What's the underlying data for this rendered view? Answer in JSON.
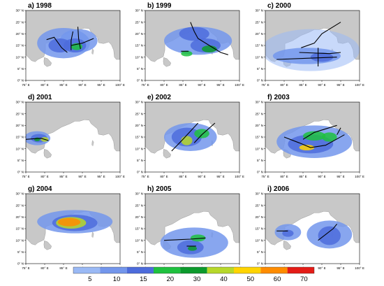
{
  "chart_data": {
    "type": "heatmap",
    "lon_ticks": [
      "75° E",
      "80° E",
      "85° E",
      "90° E",
      "95° E",
      "100° E"
    ],
    "lat_ticks": [
      "0° N",
      "5° N",
      "10° N",
      "15° N",
      "20° N",
      "25° N",
      "30° N"
    ],
    "xlim": [
      75,
      100
    ],
    "ylim": [
      0,
      30
    ],
    "colorbar": {
      "labels": [
        "5",
        "10",
        "15",
        "20",
        "30",
        "40",
        "50",
        "60",
        "70"
      ],
      "colors": [
        "#9ab9f5",
        "#7396ec",
        "#4d6cdc",
        "#1fc13f",
        "#0c9a2c",
        "#b7d82a",
        "#ffd400",
        "#ff8c00",
        "#e41c17"
      ]
    },
    "panels": [
      {
        "label": "a) 1998",
        "tracks": [
          [
            [
              80.5,
              17.5
            ],
            [
              82.5,
              18.5
            ],
            [
              84.5,
              14
            ],
            [
              86,
              12
            ]
          ],
          [
            [
              87.5,
              21
            ],
            [
              87,
              17
            ],
            [
              87,
              13
            ]
          ],
          [
            [
              88.8,
              23
            ],
            [
              89,
              18
            ],
            [
              89.5,
              13.5
            ]
          ],
          [
            [
              87,
              15
            ],
            [
              90,
              16
            ],
            [
              93,
              18
            ]
          ]
        ],
        "blobs": [
          [
            85,
            16,
            7,
            6.5,
            1
          ],
          [
            89,
            17,
            5,
            5,
            1
          ],
          [
            88,
            15,
            3,
            3,
            2
          ],
          [
            84,
            15,
            3,
            3,
            2
          ],
          [
            88.5,
            14.5,
            1.5,
            1.5,
            3
          ]
        ]
      },
      {
        "label": "b) 1999",
        "tracks": [
          [
            [
              87,
              25
            ],
            [
              88,
              21
            ],
            [
              89,
              18
            ],
            [
              92,
              15
            ],
            [
              95,
              12
            ],
            [
              97,
              11
            ]
          ],
          [
            [
              84.5,
              12.5
            ],
            [
              86.5,
              12.5
            ]
          ]
        ],
        "blobs": [
          [
            89,
            17,
            9,
            6,
            1
          ],
          [
            88,
            20,
            4,
            3,
            2
          ],
          [
            91,
            15,
            4,
            3,
            2
          ],
          [
            92,
            13.5,
            2,
            1.5,
            4
          ],
          [
            86,
            11.5,
            1.5,
            1.2,
            3
          ]
        ]
      },
      {
        "label": "c) 2000",
        "tracks": [
          [
            [
              78,
              9
            ],
            [
              86,
              9.5
            ],
            [
              94,
              10
            ]
          ],
          [
            [
              84,
              12
            ],
            [
              92,
              11.5
            ],
            [
              95,
              12
            ]
          ],
          [
            [
              84.5,
              14
            ],
            [
              88,
              16
            ],
            [
              90,
              20
            ],
            [
              95,
              25
            ]
          ],
          [
            [
              89,
              6
            ],
            [
              89,
              14
            ]
          ]
        ],
        "blobs": [
          [
            87,
            13,
            13,
            9,
            0
          ],
          [
            86,
            10.5,
            9,
            3.5,
            1
          ],
          [
            90,
            10,
            3,
            2,
            2
          ]
        ]
      },
      {
        "label": "d) 2001",
        "tracks": [
          [
            [
              75,
              14
            ],
            [
              79,
              14.5
            ],
            [
              81,
              13.5
            ]
          ]
        ],
        "blobs": [
          [
            78,
            14.5,
            3.5,
            3,
            1
          ],
          [
            78.5,
            14.5,
            2.2,
            1.8,
            2
          ],
          [
            80,
            14,
            1,
            1,
            5
          ],
          [
            78,
            14,
            0.8,
            0.8,
            4
          ]
        ]
      },
      {
        "label": "e) 2002",
        "tracks": [
          [
            [
              82,
              9
            ],
            [
              85,
              14
            ],
            [
              89,
              21
            ]
          ],
          [
            [
              88,
              12.5
            ],
            [
              90,
              16
            ],
            [
              93.5,
              21
            ]
          ]
        ],
        "blobs": [
          [
            87,
            15,
            7,
            6,
            1
          ],
          [
            86,
            15,
            4,
            4,
            2
          ],
          [
            86,
            13.5,
            1.5,
            2,
            5
          ],
          [
            90,
            16.5,
            2,
            2,
            3
          ]
        ]
      },
      {
        "label": "f) 2003",
        "tracks": [
          [
            [
              80,
              15
            ],
            [
              84,
              12.5
            ],
            [
              87,
              10.5
            ],
            [
              91,
              11.5
            ],
            [
              96,
              16
            ]
          ],
          [
            [
              85,
              14
            ],
            [
              88,
              17
            ],
            [
              94,
              20
            ]
          ],
          [
            [
              94,
              16
            ],
            [
              95,
              19
            ]
          ]
        ],
        "blobs": [
          [
            88,
            13,
            10,
            7,
            1
          ],
          [
            87,
            12,
            6,
            4,
            2
          ],
          [
            86,
            10.5,
            2,
            1.2,
            6
          ],
          [
            88,
            15.5,
            3,
            2,
            3
          ],
          [
            92,
            15,
            2,
            2,
            3
          ]
        ]
      },
      {
        "label": "g) 2004",
        "tracks": [],
        "blobs": [
          [
            88,
            18,
            10,
            5,
            1
          ],
          [
            88,
            17.5,
            6,
            3.5,
            2
          ],
          [
            87,
            17.5,
            4,
            2.5,
            5
          ],
          [
            86.5,
            17.8,
            3,
            1.8,
            7
          ]
        ]
      },
      {
        "label": "h) 2005",
        "tracks": [
          [
            [
              80,
              10
            ],
            [
              87,
              10.5
            ],
            [
              91,
              11
            ]
          ],
          [
            [
              86,
              7.5
            ],
            [
              88.5,
              7.5
            ]
          ]
        ],
        "blobs": [
          [
            88,
            9,
            9,
            6.5,
            1
          ],
          [
            87,
            7,
            3.5,
            3,
            2
          ],
          [
            87.5,
            6.5,
            1.2,
            1,
            4
          ],
          [
            89,
            11,
            2,
            1.5,
            3
          ]
        ]
      },
      {
        "label": "i) 2006",
        "tracks": [
          [
            [
              78,
              14
            ],
            [
              81,
              14
            ]
          ],
          [
            [
              89,
              10
            ],
            [
              93,
              15
            ],
            [
              94,
              17
            ]
          ]
        ],
        "blobs": [
          [
            81,
            13.5,
            3.5,
            3.5,
            1
          ],
          [
            92,
            12.5,
            6,
            6,
            1
          ],
          [
            92,
            12,
            3,
            4,
            2
          ],
          [
            81,
            13,
            1.5,
            1.5,
            2
          ]
        ]
      }
    ]
  }
}
